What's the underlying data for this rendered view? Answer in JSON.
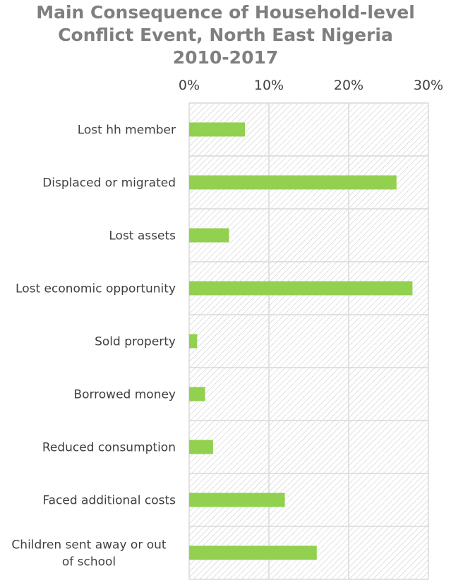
{
  "chart_data": {
    "type": "bar",
    "orientation": "horizontal",
    "title_lines": [
      "Main Consequence of Household-level",
      "Conflict Event, North East Nigeria",
      "2010-2017"
    ],
    "categories": [
      [
        "Lost hh member"
      ],
      [
        "Displaced or migrated"
      ],
      [
        "Lost assets"
      ],
      [
        "Lost economic opportunity"
      ],
      [
        "Sold property"
      ],
      [
        "Borrowed money"
      ],
      [
        "Reduced consumption"
      ],
      [
        "Faced additional costs"
      ],
      [
        "Children sent away or out",
        "of school"
      ]
    ],
    "values": [
      0.07,
      0.26,
      0.05,
      0.28,
      0.01,
      0.02,
      0.03,
      0.12,
      0.16
    ],
    "xlim": [
      0,
      0.3
    ],
    "x_ticks": [
      {
        "value": 0,
        "label": "0%"
      },
      {
        "value": 0.1,
        "label": "10%"
      },
      {
        "value": 0.2,
        "label": "20%"
      },
      {
        "value": 0.3,
        "label": "30%"
      }
    ],
    "x_axis_position": "top",
    "grid": true,
    "plot_background": "diagonal hatch",
    "colors": {
      "bar": "#92d050",
      "grid": "#d9d9d9",
      "hatch": "#bfbfbf",
      "title": "#7f7f7f"
    }
  }
}
